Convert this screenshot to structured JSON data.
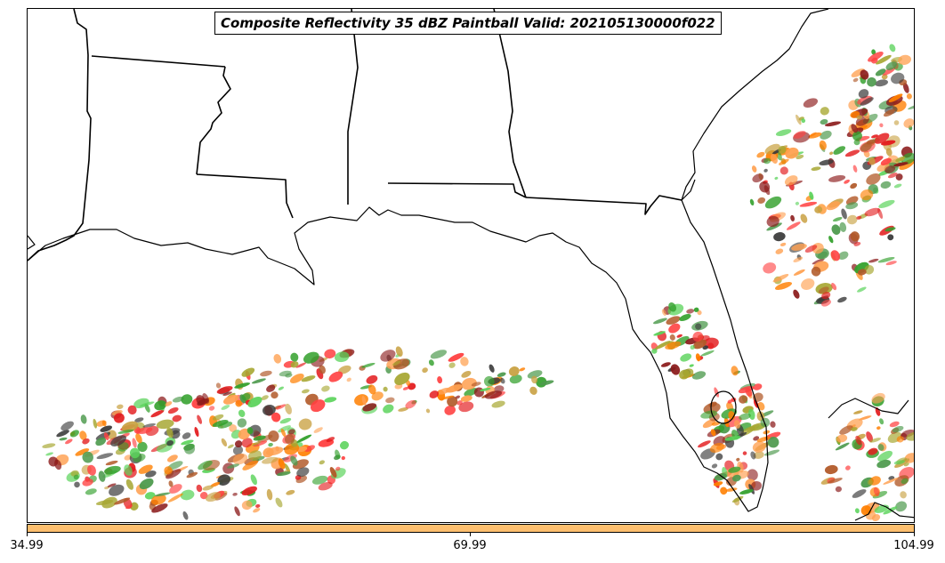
{
  "title": "Composite Reflectivity 35 dBZ Paintball Valid: 202105130000f022",
  "colorbar": {
    "color": "#fdbf6f",
    "ticks": [
      "34.99",
      "69.99",
      "104.99"
    ]
  },
  "colors": {
    "paintball": [
      "#e31a1c",
      "#33a02c",
      "#ff7f00",
      "#b15928",
      "#ffa050",
      "#8b1a1a",
      "#3a3a3a",
      "#a6a630",
      "#4d9a4d",
      "#ff4040",
      "#5ad35a",
      "#c8a040"
    ],
    "coastline": "#000000"
  }
}
